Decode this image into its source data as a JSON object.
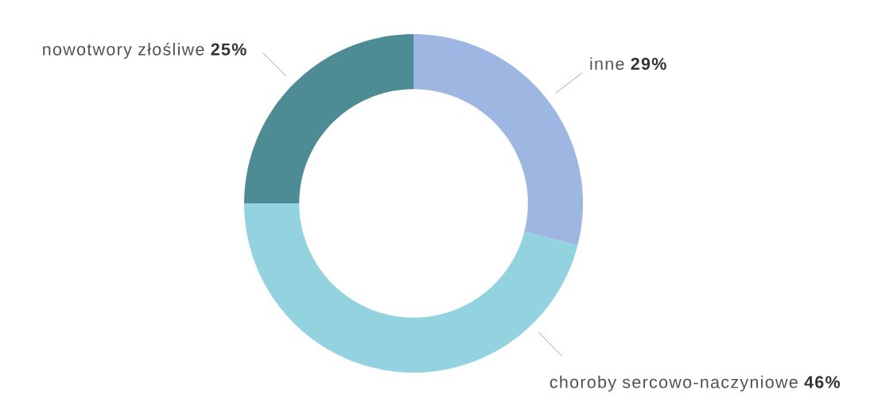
{
  "chart_data": {
    "type": "donut",
    "categories": [
      "inne",
      "choroby sercowo-naczyniowe",
      "nowotwory złośliwe"
    ],
    "values": [
      29,
      46,
      25
    ],
    "colors": [
      "#9db6e2",
      "#93d3df",
      "#4d8b95"
    ],
    "value_labels": [
      "29%",
      "46%",
      "25%"
    ]
  }
}
